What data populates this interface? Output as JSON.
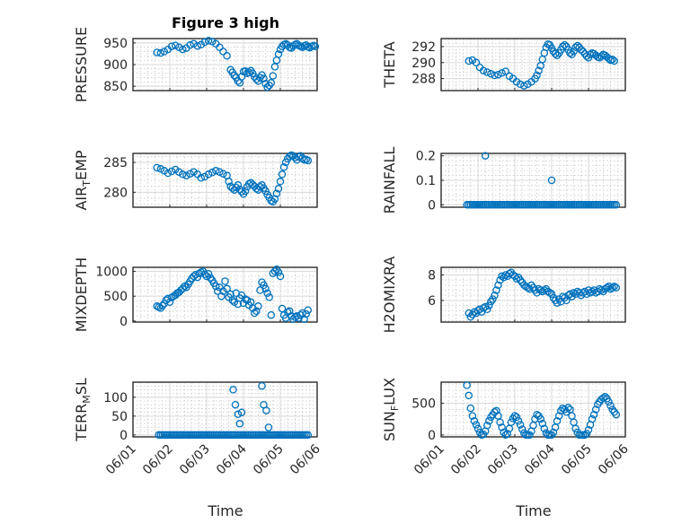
{
  "figure": {
    "title": "Figure 3 high",
    "xlabel": "Time",
    "xtick_labels": [
      "06/01",
      "06/02",
      "06/03",
      "06/04",
      "06/05",
      "06/06"
    ]
  },
  "colors": {
    "marker": "#0072bd",
    "axis": "#262626",
    "grid": "#d9d9d9"
  },
  "chart_data": [
    {
      "type": "scatter",
      "name": "PRESSURE",
      "ylabel": "PRESSURE",
      "xlim": [
        0,
        5
      ],
      "ylim": [
        840,
        960
      ],
      "yticks": [
        850,
        900,
        950
      ],
      "grid": true,
      "marker": "circle",
      "x": [
        0.65,
        0.75,
        0.85,
        0.95,
        1.05,
        1.15,
        1.25,
        1.35,
        1.45,
        1.55,
        1.65,
        1.75,
        1.85,
        1.95,
        2.05,
        2.15,
        2.25,
        2.35,
        2.45,
        2.55,
        2.65,
        2.7,
        2.75,
        2.8,
        2.85,
        2.9,
        2.95,
        3.0,
        3.05,
        3.1,
        3.15,
        3.2,
        3.25,
        3.3,
        3.35,
        3.4,
        3.45,
        3.5,
        3.55,
        3.6,
        3.65,
        3.7,
        3.75,
        3.8,
        3.85,
        3.9,
        3.95,
        4.0,
        4.05,
        4.1,
        4.15,
        4.2,
        4.25,
        4.3,
        4.35,
        4.4,
        4.45,
        4.5,
        4.55,
        4.6,
        4.65,
        4.7,
        4.75,
        4.8,
        4.85,
        4.9,
        4.95
      ],
      "y": [
        928,
        927,
        930,
        935,
        942,
        944,
        940,
        935,
        938,
        945,
        948,
        943,
        946,
        952,
        955,
        953,
        948,
        940,
        930,
        920,
        888,
        882,
        875,
        870,
        862,
        858,
        872,
        884,
        885,
        880,
        882,
        886,
        880,
        872,
        866,
        862,
        870,
        876,
        868,
        856,
        848,
        852,
        858,
        874,
        895,
        910,
        924,
        935,
        942,
        946,
        948,
        945,
        940,
        938,
        943,
        946,
        948,
        944,
        942,
        940,
        943,
        945,
        941,
        939,
        942,
        944,
        942
      ]
    },
    {
      "type": "scatter",
      "name": "THETA",
      "ylabel": "THETA",
      "xlim": [
        0,
        5
      ],
      "ylim": [
        286.5,
        293
      ],
      "yticks": [
        288,
        290,
        292
      ],
      "grid": true,
      "marker": "circle",
      "x": [
        0.75,
        0.85,
        0.95,
        1.05,
        1.15,
        1.25,
        1.35,
        1.45,
        1.55,
        1.65,
        1.75,
        1.85,
        1.95,
        2.05,
        2.15,
        2.25,
        2.35,
        2.45,
        2.55,
        2.6,
        2.65,
        2.7,
        2.75,
        2.8,
        2.85,
        2.9,
        2.95,
        3.0,
        3.05,
        3.1,
        3.15,
        3.2,
        3.25,
        3.3,
        3.35,
        3.4,
        3.45,
        3.5,
        3.55,
        3.6,
        3.65,
        3.7,
        3.75,
        3.8,
        3.85,
        3.9,
        3.95,
        4.0,
        4.05,
        4.1,
        4.15,
        4.2,
        4.25,
        4.3,
        4.35,
        4.4,
        4.45,
        4.5,
        4.55,
        4.6,
        4.65,
        4.7
      ],
      "y": [
        290.2,
        290.3,
        290.0,
        289.4,
        289.0,
        288.8,
        288.6,
        288.4,
        288.5,
        288.7,
        288.9,
        288.3,
        288.0,
        287.6,
        287.3,
        287.1,
        287.3,
        287.6,
        288.0,
        288.4,
        289.0,
        289.6,
        290.4,
        291.2,
        291.9,
        292.3,
        292.2,
        291.8,
        291.4,
        291.1,
        290.9,
        291.2,
        291.6,
        292.0,
        292.2,
        292.0,
        291.6,
        291.2,
        291.0,
        291.4,
        291.9,
        292.1,
        291.9,
        291.6,
        291.4,
        291.1,
        290.8,
        290.6,
        291.0,
        291.2,
        291.1,
        290.9,
        290.7,
        290.6,
        290.8,
        291.0,
        290.9,
        290.7,
        290.5,
        290.3,
        290.4,
        290.2
      ]
    },
    {
      "type": "scatter",
      "name": "AIR_TEMP",
      "ylabel": "AIR_TEMP",
      "xlim": [
        0,
        5
      ],
      "ylim": [
        277.5,
        286.5
      ],
      "yticks": [
        280,
        285
      ],
      "grid": true,
      "marker": "circle",
      "x": [
        0.65,
        0.75,
        0.85,
        0.95,
        1.05,
        1.15,
        1.25,
        1.35,
        1.45,
        1.55,
        1.65,
        1.75,
        1.85,
        1.95,
        2.05,
        2.15,
        2.25,
        2.35,
        2.45,
        2.55,
        2.6,
        2.65,
        2.7,
        2.75,
        2.8,
        2.85,
        2.9,
        2.95,
        3.0,
        3.05,
        3.1,
        3.15,
        3.2,
        3.25,
        3.3,
        3.35,
        3.4,
        3.45,
        3.5,
        3.55,
        3.6,
        3.65,
        3.7,
        3.75,
        3.8,
        3.85,
        3.9,
        3.95,
        4.0,
        4.05,
        4.1,
        4.15,
        4.2,
        4.25,
        4.3,
        4.35,
        4.4,
        4.45,
        4.5,
        4.55,
        4.6,
        4.65,
        4.7,
        4.75
      ],
      "y": [
        284.1,
        283.9,
        283.6,
        283.2,
        283.5,
        283.8,
        283.4,
        283.0,
        282.8,
        283.1,
        283.4,
        283.0,
        282.4,
        282.6,
        283.0,
        283.3,
        283.6,
        283.4,
        283.1,
        282.8,
        281.8,
        281.0,
        280.7,
        280.4,
        280.8,
        281.2,
        280.5,
        280.1,
        279.7,
        280.2,
        280.9,
        281.4,
        281.6,
        281.3,
        281.0,
        280.6,
        280.4,
        280.9,
        281.2,
        280.7,
        280.2,
        279.6,
        279.1,
        278.6,
        278.4,
        278.9,
        279.8,
        280.6,
        281.8,
        283.0,
        284.2,
        285.0,
        285.6,
        286.0,
        286.2,
        286.1,
        285.8,
        285.4,
        285.9,
        286.1,
        285.7,
        285.4,
        285.5,
        285.3
      ]
    },
    {
      "type": "scatter",
      "name": "RAINFALL",
      "ylabel": "RAINFALL",
      "xlim": [
        0,
        5
      ],
      "ylim": [
        -0.01,
        0.21
      ],
      "yticks": [
        0,
        0.1,
        0.2
      ],
      "grid": true,
      "marker": "circle",
      "x": [
        0.7,
        0.75,
        0.8,
        0.85,
        0.9,
        0.95,
        1.0,
        1.05,
        1.1,
        1.15,
        1.2,
        1.25,
        1.3,
        1.35,
        1.4,
        1.45,
        1.5,
        1.55,
        1.6,
        1.65,
        1.7,
        1.75,
        1.8,
        1.85,
        1.9,
        1.95,
        2.0,
        2.05,
        2.1,
        2.15,
        2.2,
        2.25,
        2.3,
        2.35,
        2.4,
        2.45,
        2.5,
        2.55,
        2.6,
        2.65,
        2.7,
        2.75,
        2.8,
        2.85,
        2.9,
        2.95,
        3.0,
        3.05,
        3.1,
        3.15,
        3.2,
        3.25,
        3.3,
        3.35,
        3.4,
        3.45,
        3.5,
        3.55,
        3.6,
        3.65,
        3.7,
        3.75,
        3.8,
        3.85,
        3.9,
        3.95,
        4.0,
        4.05,
        4.1,
        4.15,
        4.2,
        4.25,
        4.3,
        4.35,
        4.4,
        4.45,
        4.5,
        4.55,
        4.6,
        4.65,
        4.7,
        4.75,
        1.2,
        3.0
      ],
      "y": [
        0,
        0,
        0,
        0,
        0,
        0,
        0,
        0,
        0,
        0,
        0,
        0,
        0,
        0,
        0,
        0,
        0,
        0,
        0,
        0,
        0,
        0,
        0,
        0,
        0,
        0,
        0,
        0,
        0,
        0,
        0,
        0,
        0,
        0,
        0,
        0,
        0,
        0,
        0,
        0,
        0,
        0,
        0,
        0,
        0,
        0,
        0,
        0,
        0,
        0,
        0,
        0,
        0,
        0,
        0,
        0,
        0,
        0,
        0,
        0,
        0,
        0,
        0,
        0,
        0,
        0,
        0,
        0,
        0,
        0,
        0,
        0,
        0,
        0,
        0,
        0,
        0,
        0,
        0,
        0,
        0,
        0,
        0.2,
        0.1
      ]
    },
    {
      "type": "scatter",
      "name": "MIXDEPTH",
      "ylabel": "MIXDEPTH",
      "xlim": [
        0,
        5
      ],
      "ylim": [
        -20,
        1080
      ],
      "yticks": [
        0,
        500,
        1000
      ],
      "grid": true,
      "marker": "circle",
      "x": [
        0.65,
        0.7,
        0.75,
        0.8,
        0.85,
        0.9,
        0.95,
        1.0,
        1.05,
        1.1,
        1.15,
        1.2,
        1.25,
        1.3,
        1.35,
        1.4,
        1.45,
        1.5,
        1.55,
        1.6,
        1.65,
        1.7,
        1.75,
        1.8,
        1.85,
        1.9,
        1.95,
        2.0,
        2.05,
        2.1,
        2.15,
        2.2,
        2.25,
        2.3,
        2.35,
        2.4,
        2.45,
        2.5,
        2.55,
        2.6,
        2.65,
        2.7,
        2.75,
        2.8,
        2.85,
        2.9,
        2.95,
        3.0,
        3.05,
        3.1,
        3.15,
        3.2,
        3.25,
        3.3,
        3.35,
        3.4,
        3.45,
        3.5,
        3.55,
        3.6,
        3.65,
        3.7,
        3.75,
        3.8,
        3.85,
        3.9,
        3.95,
        4.0,
        4.05,
        4.1,
        4.15,
        4.2,
        4.25,
        4.3,
        4.35,
        4.4,
        4.45,
        4.5,
        4.55,
        4.6,
        4.65,
        4.7,
        4.75
      ],
      "y": [
        300,
        280,
        260,
        310,
        350,
        420,
        450,
        380,
        470,
        500,
        520,
        560,
        580,
        620,
        650,
        700,
        680,
        740,
        800,
        860,
        900,
        930,
        880,
        960,
        980,
        1000,
        940,
        900,
        950,
        870,
        820,
        760,
        700,
        600,
        680,
        500,
        600,
        800,
        650,
        480,
        540,
        420,
        380,
        560,
        340,
        460,
        520,
        360,
        440,
        420,
        320,
        380,
        260,
        160,
        200,
        300,
        620,
        780,
        720,
        650,
        560,
        480,
        120,
        960,
        1000,
        1040,
        980,
        900,
        250,
        120,
        60,
        180,
        200,
        100,
        40,
        80,
        100,
        60,
        120,
        160,
        40,
        140,
        220
      ]
    },
    {
      "type": "scatter",
      "name": "H2OMIXRA",
      "ylabel": "H2OMIXRA",
      "xlim": [
        0,
        5
      ],
      "ylim": [
        4.3,
        8.6
      ],
      "yticks": [
        6,
        8
      ],
      "grid": true,
      "marker": "circle",
      "x": [
        0.75,
        0.8,
        0.85,
        0.9,
        0.95,
        1.0,
        1.05,
        1.1,
        1.15,
        1.2,
        1.25,
        1.3,
        1.35,
        1.4,
        1.45,
        1.5,
        1.55,
        1.6,
        1.65,
        1.7,
        1.75,
        1.8,
        1.85,
        1.9,
        1.95,
        2.0,
        2.05,
        2.1,
        2.15,
        2.2,
        2.25,
        2.3,
        2.35,
        2.4,
        2.45,
        2.5,
        2.55,
        2.6,
        2.65,
        2.7,
        2.75,
        2.8,
        2.85,
        2.9,
        2.95,
        3.0,
        3.05,
        3.1,
        3.15,
        3.2,
        3.25,
        3.3,
        3.35,
        3.4,
        3.45,
        3.5,
        3.55,
        3.6,
        3.65,
        3.7,
        3.75,
        3.8,
        3.85,
        3.9,
        3.95,
        4.0,
        4.05,
        4.1,
        4.15,
        4.2,
        4.25,
        4.3,
        4.35,
        4.4,
        4.45,
        4.5,
        4.55,
        4.6,
        4.65,
        4.7,
        4.75
      ],
      "y": [
        5.0,
        4.7,
        4.9,
        5.1,
        5.0,
        5.2,
        5.3,
        5.1,
        5.4,
        5.5,
        5.3,
        5.6,
        5.9,
        6.1,
        6.4,
        6.8,
        7.2,
        7.6,
        7.9,
        7.8,
        8.0,
        7.9,
        8.1,
        8.2,
        8.0,
        7.9,
        7.7,
        7.8,
        7.6,
        7.4,
        7.2,
        7.1,
        7.0,
        6.9,
        7.2,
        7.0,
        6.8,
        6.6,
        6.9,
        6.8,
        6.7,
        6.8,
        6.9,
        6.7,
        6.6,
        6.5,
        6.2,
        6.0,
        5.8,
        6.1,
        5.9,
        6.3,
        6.2,
        6.0,
        6.4,
        6.5,
        6.3,
        6.6,
        6.5,
        6.7,
        6.6,
        6.4,
        6.6,
        6.7,
        6.5,
        6.8,
        6.6,
        6.7,
        6.8,
        6.6,
        6.7,
        6.9,
        6.8,
        6.7,
        6.9,
        7.0,
        7.1,
        6.9,
        7.0,
        7.1,
        7.0
      ]
    },
    {
      "type": "scatter",
      "name": "TERR_MSL",
      "ylabel": "TERR_MSL",
      "xlim": [
        0,
        5
      ],
      "ylim": [
        -5,
        140
      ],
      "yticks": [
        0,
        50,
        100
      ],
      "grid": true,
      "marker": "circle",
      "x": [
        0.7,
        0.75,
        0.8,
        0.85,
        0.9,
        0.95,
        1.0,
        1.05,
        1.1,
        1.15,
        1.2,
        1.25,
        1.3,
        1.35,
        1.4,
        1.45,
        1.5,
        1.55,
        1.6,
        1.65,
        1.7,
        1.75,
        1.8,
        1.85,
        1.9,
        1.95,
        2.0,
        2.05,
        2.1,
        2.15,
        2.2,
        2.25,
        2.3,
        2.35,
        2.4,
        2.45,
        2.5,
        2.55,
        2.6,
        2.65,
        2.7,
        2.75,
        2.8,
        2.85,
        2.9,
        2.95,
        3.0,
        3.05,
        3.1,
        3.15,
        3.2,
        3.25,
        3.3,
        3.35,
        3.4,
        3.45,
        3.5,
        3.55,
        3.6,
        3.65,
        3.7,
        3.75,
        3.8,
        3.85,
        3.9,
        3.95,
        4.0,
        4.05,
        4.1,
        4.15,
        4.2,
        4.25,
        4.3,
        4.35,
        4.4,
        4.45,
        4.5,
        4.55,
        4.6,
        4.65,
        4.7,
        4.75,
        2.72,
        2.78,
        2.85,
        2.9,
        2.95,
        3.5,
        3.55,
        3.62,
        3.68
      ],
      "y": [
        0,
        0,
        0,
        0,
        0,
        0,
        0,
        0,
        0,
        0,
        0,
        0,
        0,
        0,
        0,
        0,
        0,
        0,
        0,
        0,
        0,
        0,
        0,
        0,
        0,
        0,
        0,
        0,
        0,
        0,
        0,
        0,
        0,
        0,
        0,
        0,
        0,
        0,
        0,
        0,
        0,
        0,
        0,
        0,
        0,
        0,
        0,
        0,
        0,
        0,
        0,
        0,
        0,
        0,
        0,
        0,
        0,
        0,
        0,
        0,
        0,
        0,
        0,
        0,
        0,
        0,
        0,
        0,
        0,
        0,
        0,
        0,
        0,
        0,
        0,
        0,
        0,
        0,
        0,
        0,
        0,
        0,
        120,
        80,
        55,
        30,
        60,
        130,
        80,
        65,
        20
      ]
    },
    {
      "type": "scatter",
      "name": "SUN_FLUX",
      "ylabel": "SUN_FLUX",
      "xlim": [
        0,
        5
      ],
      "ylim": [
        -30,
        830
      ],
      "yticks": [
        0,
        500
      ],
      "grid": true,
      "marker": "circle",
      "x": [
        0.7,
        0.75,
        0.8,
        0.85,
        0.9,
        0.95,
        1.0,
        1.05,
        1.1,
        1.15,
        1.2,
        1.25,
        1.3,
        1.35,
        1.4,
        1.45,
        1.5,
        1.55,
        1.6,
        1.65,
        1.7,
        1.75,
        1.8,
        1.85,
        1.9,
        1.95,
        2.0,
        2.05,
        2.1,
        2.15,
        2.2,
        2.25,
        2.3,
        2.35,
        2.4,
        2.45,
        2.5,
        2.55,
        2.6,
        2.65,
        2.7,
        2.75,
        2.8,
        2.85,
        2.9,
        2.95,
        3.0,
        3.05,
        3.1,
        3.15,
        3.2,
        3.25,
        3.3,
        3.35,
        3.4,
        3.45,
        3.5,
        3.55,
        3.6,
        3.65,
        3.7,
        3.75,
        3.8,
        3.85,
        3.9,
        3.95,
        4.0,
        4.05,
        4.1,
        4.15,
        4.2,
        4.25,
        4.3,
        4.35,
        4.4,
        4.45,
        4.5,
        4.55,
        4.6,
        4.65,
        4.7,
        4.75
      ],
      "y": [
        780,
        620,
        420,
        300,
        220,
        160,
        100,
        40,
        0,
        10,
        60,
        150,
        220,
        280,
        320,
        360,
        380,
        300,
        200,
        120,
        40,
        0,
        20,
        100,
        200,
        260,
        300,
        280,
        220,
        160,
        90,
        30,
        0,
        0,
        0,
        60,
        150,
        250,
        320,
        300,
        250,
        180,
        100,
        30,
        0,
        0,
        0,
        40,
        120,
        220,
        300,
        380,
        420,
        400,
        360,
        430,
        400,
        300,
        200,
        100,
        40,
        0,
        0,
        0,
        0,
        20,
        80,
        160,
        250,
        320,
        400,
        480,
        520,
        560,
        580,
        600,
        570,
        520,
        460,
        400,
        360,
        320
      ]
    }
  ]
}
